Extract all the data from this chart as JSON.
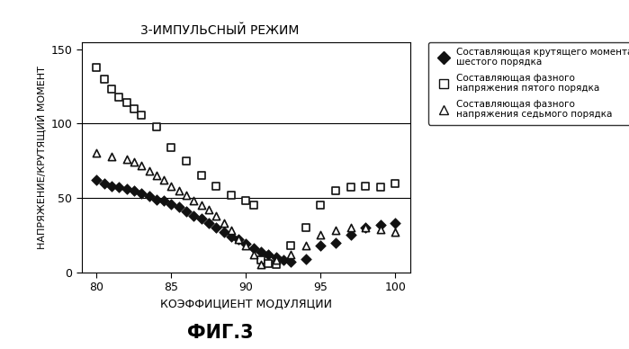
{
  "title": "3-ИМПУЛЬСНЫЙ РЕЖИМ",
  "xlabel": "КОЭФФИЦИЕНТ МОДУЛЯЦИИ",
  "ylabel": "НАПРЯЖЕНИЕ/КРУТЯЩИЙ МОМЕНТ",
  "fig_label": "ФИГ.3",
  "xlim": [
    79,
    101
  ],
  "ylim": [
    0,
    155
  ],
  "yticks": [
    0,
    50,
    100,
    150
  ],
  "xticks": [
    80,
    85,
    90,
    95,
    100
  ],
  "hlines": [
    50,
    100
  ],
  "series1_label_line1": "Составляющая крутящего момента",
  "series1_label_line2": "шестого порядка",
  "series2_label_line1": "Составляющая фазного",
  "series2_label_line2": "напряжения пятого порядка",
  "series3_label_line1": "Составляющая фазного",
  "series3_label_line2": "напряжения седьмого порядка",
  "diamond_x": [
    80,
    80.5,
    81,
    81.5,
    82,
    82.5,
    83,
    83.5,
    84,
    84.5,
    85,
    85.5,
    86,
    86.5,
    87,
    87.5,
    88,
    88.5,
    89,
    89.5,
    90,
    90.5,
    91,
    91.5,
    92,
    92.5,
    93,
    94,
    95,
    96,
    97,
    98,
    99,
    100
  ],
  "diamond_y": [
    62,
    60,
    58,
    57,
    56,
    55,
    53,
    51,
    49,
    48,
    46,
    44,
    41,
    38,
    36,
    33,
    30,
    27,
    24,
    22,
    19,
    16,
    14,
    12,
    10,
    8,
    7,
    9,
    18,
    20,
    25,
    30,
    32,
    33
  ],
  "square_x": [
    80,
    80.5,
    81,
    81.5,
    82,
    82.5,
    83,
    84,
    85,
    86,
    87,
    88,
    89,
    90,
    90.5,
    91,
    91.5,
    92,
    93,
    94,
    95,
    96,
    97,
    98,
    99,
    100
  ],
  "square_y": [
    138,
    130,
    123,
    118,
    114,
    110,
    106,
    98,
    84,
    75,
    65,
    58,
    52,
    48,
    45,
    8,
    6,
    5,
    18,
    30,
    45,
    55,
    57,
    58,
    57,
    60
  ],
  "triangle_x": [
    80,
    81,
    82,
    82.5,
    83,
    83.5,
    84,
    84.5,
    85,
    85.5,
    86,
    86.5,
    87,
    87.5,
    88,
    88.5,
    89,
    89.5,
    90,
    90.5,
    91,
    92,
    93,
    94,
    95,
    96,
    97,
    98,
    99,
    100
  ],
  "triangle_y": [
    80,
    78,
    76,
    74,
    72,
    68,
    65,
    62,
    58,
    55,
    52,
    48,
    45,
    42,
    38,
    33,
    28,
    22,
    18,
    12,
    5,
    8,
    12,
    18,
    25,
    28,
    30,
    30,
    29,
    27
  ],
  "background_color": "#ffffff",
  "marker_color": "#111111"
}
